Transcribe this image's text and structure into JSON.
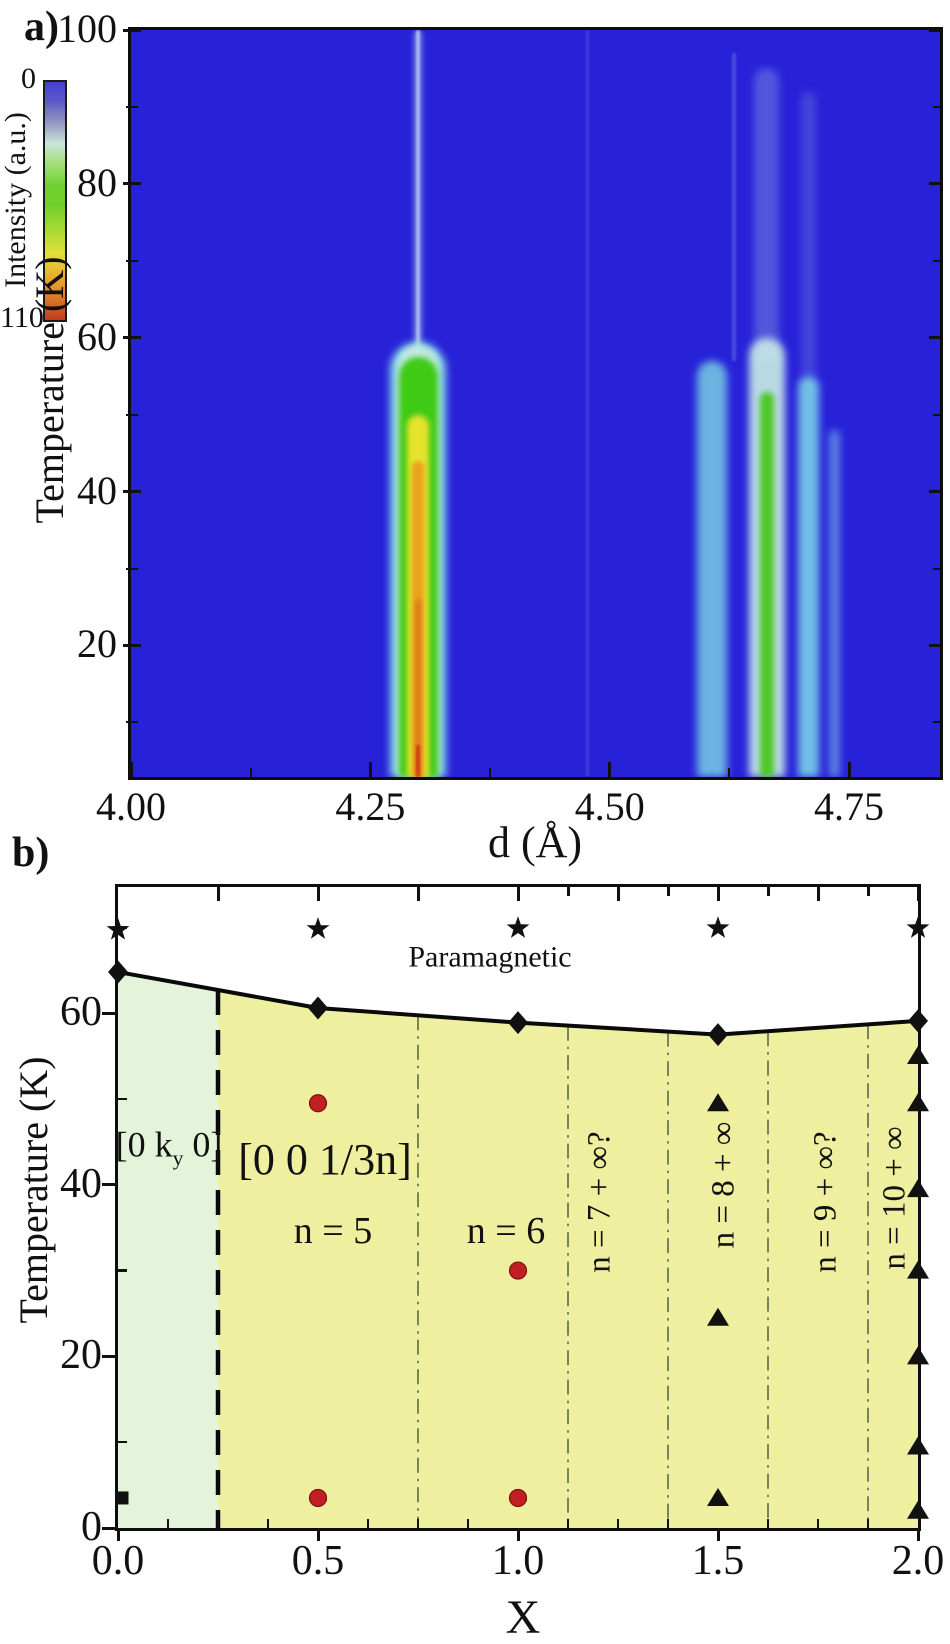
{
  "chart_data": [
    {
      "id": "panel_a",
      "type": "heatmap",
      "title": "a)",
      "xlabel": "d (Å)",
      "ylabel": "Temperature (K)",
      "xlim": [
        4.0,
        4.845
      ],
      "ylim": [
        2.9,
        100
      ],
      "background": "#2722d8",
      "x_ticks": {
        "major": [
          {
            "v": 4.0,
            "label": "4.00"
          },
          {
            "v": 4.25,
            "label": "4.25"
          },
          {
            "v": 4.5,
            "label": "4.50"
          },
          {
            "v": 4.75,
            "label": "4.75"
          }
        ],
        "minor": [
          4.125,
          4.375,
          4.625
        ]
      },
      "y_ticks": {
        "major": [
          {
            "v": 100,
            "label": "100"
          },
          {
            "v": 80,
            "label": "80"
          },
          {
            "v": 60,
            "label": "60"
          },
          {
            "v": 40,
            "label": "40"
          },
          {
            "v": 20,
            "label": "20"
          }
        ],
        "minor": [
          90,
          70,
          50,
          30,
          10
        ]
      },
      "colorbar": {
        "label": "Intensity (a.u.)",
        "min": 0,
        "max": 110,
        "stops": [
          "#4340cf 0%",
          "#5a5ac8 8%",
          "#8d8fbe 16%",
          "#c9e6da 26%",
          "#a5e07a 34%",
          "#6ecf2e 44%",
          "#72d02c 52%",
          "#a8d832 62%",
          "#e2e13a 72%",
          "#e7ab2e 82%",
          "#dd7e26 90%",
          "#c23a1e 100%"
        ]
      },
      "features": [
        {
          "name": "bragg-tail-line-outer",
          "d": 4.3,
          "half_width": 0.005,
          "T_top": 100,
          "T_bottom": 57,
          "color": "#93a4e8",
          "alpha": 0.55,
          "blur": 2,
          "cap": 6
        },
        {
          "name": "bragg-tail-line-core",
          "d": 4.3,
          "half_width": 0.002,
          "T_top": 100,
          "T_bottom": 57,
          "color": "#c9dcf4",
          "alpha": 0.7,
          "blur": 1,
          "cap": 4
        },
        {
          "name": "ghost-line-4.48",
          "d": 4.477,
          "half_width": 0.0018,
          "T_top": 100,
          "T_bottom": 3,
          "color": "#6f7ade",
          "alpha": 0.35,
          "blur": 1,
          "cap": 4
        },
        {
          "name": "ghost-column-4.66",
          "d": 4.664,
          "half_width": 0.013,
          "T_top": 95,
          "T_bottom": 57,
          "color": "#8795e2",
          "alpha": 0.45,
          "blur": 4,
          "cap": 40
        },
        {
          "name": "ghost-column-4.71",
          "d": 4.708,
          "half_width": 0.008,
          "T_top": 92,
          "T_bottom": 55,
          "color": "#8795e2",
          "alpha": 0.3,
          "blur": 4,
          "cap": 40
        },
        {
          "name": "ghost-line-4.63",
          "d": 4.63,
          "half_width": 0.0022,
          "T_top": 97,
          "T_bottom": 57,
          "color": "#7f8ae0",
          "alpha": 0.4,
          "blur": 1,
          "cap": 4
        },
        {
          "name": "satellite-band-4.61",
          "d": 4.607,
          "half_width": 0.0155,
          "T_top": 57,
          "color": "#7cd8e4",
          "alpha": 0.8,
          "blur": 4,
          "cap": 70
        },
        {
          "name": "satellite-band-4.66-halo",
          "d": 4.664,
          "half_width": 0.019,
          "T_top": 60,
          "color": "#c9ece6",
          "alpha": 0.9,
          "blur": 4,
          "cap": 80
        },
        {
          "name": "satellite-band-4.66-core",
          "d": 4.664,
          "half_width": 0.0075,
          "T_top": 53,
          "color": "#49c81d",
          "alpha": 0.95,
          "blur": 3,
          "cap": 90
        },
        {
          "name": "satellite-band-4.71",
          "d": 4.708,
          "half_width": 0.011,
          "T_top": 55,
          "color": "#7fdbe9",
          "alpha": 0.85,
          "blur": 4,
          "cap": 70
        },
        {
          "name": "satellite-band-4.735",
          "d": 4.735,
          "half_width": 0.0055,
          "T_top": 48,
          "color": "#8fdde9",
          "alpha": 0.5,
          "blur": 4,
          "cap": 50
        },
        {
          "name": "main-peak-cyan-halo",
          "d": 4.3,
          "half_width": 0.029,
          "T_top": 59.5,
          "color": "#8adfe6",
          "alpha": 0.95,
          "blur": 4,
          "cap": 90
        },
        {
          "name": "main-peak-pale-fringe",
          "d": 4.3,
          "half_width": 0.022,
          "T_top": 59,
          "color": "#cdeedd",
          "alpha": 0.8,
          "blur": 3,
          "cap": 100
        },
        {
          "name": "main-peak-green",
          "d": 4.3,
          "half_width": 0.0205,
          "T_top": 57.5,
          "color": "#3fca16",
          "alpha": 1,
          "blur": 3,
          "cap": 120
        },
        {
          "name": "main-peak-yellow",
          "d": 4.3,
          "half_width": 0.0115,
          "T_top": 50,
          "color": "#e6e42c",
          "alpha": 1,
          "blur": 3,
          "cap": 140
        },
        {
          "name": "main-peak-orange",
          "d": 4.3,
          "half_width": 0.0063,
          "T_top": 44,
          "color": "#eaa21f",
          "alpha": 1,
          "blur": 2,
          "cap": 160
        },
        {
          "name": "main-peak-deep-orange",
          "d": 4.3,
          "half_width": 0.0034,
          "T_top": 26,
          "color": "#dd7d1a",
          "alpha": 1,
          "blur": 2,
          "cap": 120
        },
        {
          "name": "main-peak-red-base",
          "d": 4.3,
          "half_width": 0.0018,
          "T_top": 7,
          "color": "#cd3a10",
          "alpha": 0.9,
          "blur": 1,
          "cap": 30
        }
      ]
    },
    {
      "id": "panel_b",
      "type": "scatter",
      "title": "b)",
      "xlabel": "X",
      "ylabel": "Temperature (K)",
      "xlim": [
        0,
        2
      ],
      "ylim": [
        0,
        74.7
      ],
      "x_ticks": {
        "major": [
          {
            "v": 0,
            "label": "0.0"
          },
          {
            "v": 0.5,
            "label": "0.5"
          },
          {
            "v": 1,
            "label": "1.0"
          },
          {
            "v": 1.5,
            "label": "1.5"
          },
          {
            "v": 2,
            "label": "2.0"
          }
        ],
        "minor": [
          0.125,
          0.25,
          0.375,
          0.625,
          0.75,
          0.875,
          1.125,
          1.25,
          1.375,
          1.625,
          1.75,
          1.875
        ],
        "top": [
          0.25,
          0.5,
          0.75,
          1,
          1.125,
          1.25,
          1.375,
          1.5,
          1.625,
          1.75,
          1.875,
          2
        ]
      },
      "y_ticks": {
        "major": [
          {
            "v": 0,
            "label": "0"
          },
          {
            "v": 20,
            "label": "20"
          },
          {
            "v": 40,
            "label": "40"
          },
          {
            "v": 60,
            "label": "60"
          }
        ],
        "minor": [
          10,
          30,
          50,
          70
        ]
      },
      "boundary": [
        [
          0,
          64.8
        ],
        [
          0.25,
          62.7
        ],
        [
          0.5,
          60.6
        ],
        [
          1,
          58.9
        ],
        [
          1.5,
          57.5
        ],
        [
          2,
          59.1
        ]
      ],
      "regions": [
        {
          "name": "region-0ky0",
          "x_range": [
            0,
            0.25
          ],
          "fill": "#e4f4da"
        },
        {
          "name": "region-001-3n",
          "x_range": [
            0.25,
            2
          ],
          "fill": "#eef0a0"
        }
      ],
      "dividers": {
        "bold_dashed": [
          0.25
        ],
        "dash_dot": [
          0.75,
          1.125,
          1.375,
          1.625,
          1.875
        ],
        "dash_dot_color": "#4c5c45"
      },
      "series": [
        {
          "name": "paramagnetic-stars",
          "marker": "star",
          "color": "#111111",
          "points": [
            [
              0,
              69.7
            ],
            [
              0.5,
              69.8
            ],
            [
              1,
              69.9
            ],
            [
              1.5,
              69.9
            ],
            [
              2,
              69.9
            ]
          ]
        },
        {
          "name": "transition-diamonds",
          "marker": "diamond",
          "color": "#111111",
          "points": [
            [
              0,
              64.8
            ],
            [
              0.5,
              60.6
            ],
            [
              1,
              58.9
            ],
            [
              1.5,
              57.5
            ],
            [
              2,
              59.1
            ]
          ]
        },
        {
          "name": "commensurate-red-circles",
          "marker": "circle",
          "color": "#c21f24",
          "points": [
            [
              0.5,
              49.5
            ],
            [
              1,
              30
            ],
            [
              0.5,
              3.5
            ],
            [
              1,
              3.5
            ]
          ]
        },
        {
          "name": "mixed-phase-triangles",
          "marker": "triangle",
          "color": "#111111",
          "points": [
            [
              1.5,
              49.5
            ],
            [
              1.5,
              24.5
            ],
            [
              1.5,
              3.5
            ],
            [
              2,
              55
            ],
            [
              2,
              49.5
            ],
            [
              2,
              39.5
            ],
            [
              2,
              30
            ],
            [
              2,
              20
            ],
            [
              2,
              9.5
            ],
            [
              2,
              2
            ]
          ]
        },
        {
          "name": "zero-x-square",
          "marker": "square",
          "color": "#111111",
          "points": [
            [
              0.01,
              3.5
            ]
          ]
        }
      ],
      "annotations": [
        {
          "text": "Paramagnetic",
          "x": 0.93,
          "T": 66.5,
          "rotated": false,
          "size": 30
        },
        {
          "pre": "[0 k",
          "sub": "y",
          "post": " 0]",
          "x": 0.1275,
          "T": 44.3,
          "rotated": false,
          "size": 36
        },
        {
          "text": "[0 0 1/3n]",
          "x": 0.5175,
          "T": 42.9,
          "rotated": false,
          "size": 44
        },
        {
          "text": "n = 5",
          "x": 0.5375,
          "T": 34.5,
          "rotated": false,
          "size": 38
        },
        {
          "text": "n = 6",
          "x": 0.97,
          "T": 34.5,
          "rotated": false,
          "size": 38
        },
        {
          "text": "n = 7 + ∞?",
          "x": 1.205,
          "T": 38,
          "rotated": true,
          "size": 33
        },
        {
          "text": "n = 8 + ∞",
          "x": 1.515,
          "T": 40,
          "rotated": true,
          "size": 33
        },
        {
          "text": "n = 9 + ∞?",
          "x": 1.77,
          "T": 38,
          "rotated": true,
          "size": 33
        },
        {
          "text": "n = 10 + ∞",
          "x": 1.9425,
          "T": 38.5,
          "rotated": true,
          "size": 33
        }
      ]
    }
  ]
}
